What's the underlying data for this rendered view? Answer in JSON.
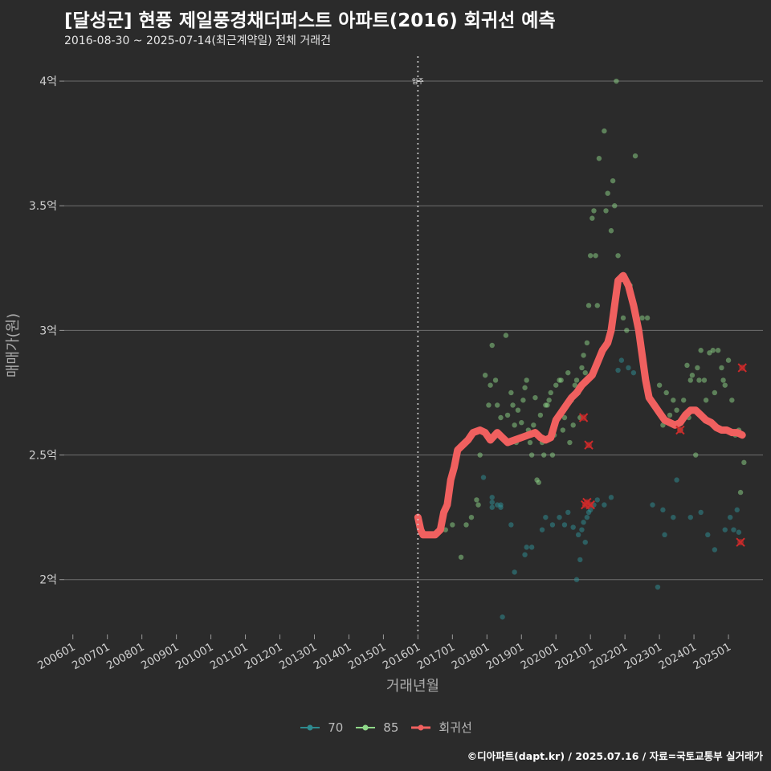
{
  "header": {
    "title": "[달성군] 현풍 제일풍경채더퍼스트 아파트(2016) 회귀선 예측",
    "subtitle": "2016-08-30 ~ 2025-07-14(최근계약일) 전체 거래건"
  },
  "footer": {
    "credit": "©디아파트(dapt.kr) / 2025.07.16 / 자료=국토교통부 실거래가"
  },
  "colors": {
    "background": "#2b2b2b",
    "grid": "#6e6e6e",
    "series70": "#2f8a8f",
    "series85": "#8fd889",
    "regression": "#f0605f",
    "outlier": "#cc2a2a"
  },
  "chart_data": {
    "type": "scatter",
    "title": "[달성군] 현풍 제일풍경채더퍼스트 아파트(2016) 회귀선 예측",
    "xlabel": "거래년월",
    "ylabel": "매매가(원)",
    "xlim": [
      2005.75,
      2026.0
    ],
    "ylim": [
      1.78,
      4.1
    ],
    "x_ticks": [
      {
        "label": "200601",
        "value": 2006.0
      },
      {
        "label": "200701",
        "value": 2007.0
      },
      {
        "label": "200801",
        "value": 2008.0
      },
      {
        "label": "200901",
        "value": 2009.0
      },
      {
        "label": "201001",
        "value": 2010.0
      },
      {
        "label": "201101",
        "value": 2011.0
      },
      {
        "label": "201201",
        "value": 2012.0
      },
      {
        "label": "201301",
        "value": 2013.0
      },
      {
        "label": "201401",
        "value": 2014.0
      },
      {
        "label": "201501",
        "value": 2015.0
      },
      {
        "label": "201601",
        "value": 2016.0
      },
      {
        "label": "201701",
        "value": 2017.0
      },
      {
        "label": "201801",
        "value": 2018.0
      },
      {
        "label": "201901",
        "value": 2019.0
      },
      {
        "label": "202001",
        "value": 2020.0
      },
      {
        "label": "202101",
        "value": 2021.0
      },
      {
        "label": "202201",
        "value": 2022.0
      },
      {
        "label": "202301",
        "value": 2023.0
      },
      {
        "label": "202401",
        "value": 2024.0
      },
      {
        "label": "202501",
        "value": 2025.0
      }
    ],
    "y_ticks": [
      {
        "label": "2억",
        "value": 2.0
      },
      {
        "label": "2.5억",
        "value": 2.5
      },
      {
        "label": "3억",
        "value": 3.0
      },
      {
        "label": "3.5억",
        "value": 3.5
      },
      {
        "label": "4억",
        "value": 4.0
      }
    ],
    "annotations": [
      {
        "label": "입주",
        "x": 2016.0,
        "y": 4.0
      }
    ],
    "legend": [
      "70",
      "85",
      "회귀선"
    ],
    "series": [
      {
        "name": "70",
        "points": [
          [
            2017.9,
            2.41
          ],
          [
            2018.15,
            2.33
          ],
          [
            2018.15,
            2.31
          ],
          [
            2018.15,
            2.29
          ],
          [
            2018.3,
            2.3
          ],
          [
            2018.4,
            2.29
          ],
          [
            2018.4,
            2.3
          ],
          [
            2018.45,
            1.85
          ],
          [
            2018.7,
            2.22
          ],
          [
            2018.8,
            2.03
          ],
          [
            2019.1,
            2.1
          ],
          [
            2019.15,
            2.13
          ],
          [
            2019.3,
            2.13
          ],
          [
            2019.6,
            2.2
          ],
          [
            2019.7,
            2.25
          ],
          [
            2019.9,
            2.22
          ],
          [
            2020.1,
            2.25
          ],
          [
            2020.25,
            2.22
          ],
          [
            2020.35,
            2.27
          ],
          [
            2020.5,
            2.21
          ],
          [
            2020.6,
            2.0
          ],
          [
            2020.65,
            2.18
          ],
          [
            2020.7,
            2.08
          ],
          [
            2020.75,
            2.2
          ],
          [
            2020.8,
            2.23
          ],
          [
            2020.85,
            2.15
          ],
          [
            2020.9,
            2.25
          ],
          [
            2020.95,
            2.27
          ],
          [
            2021.0,
            2.28
          ],
          [
            2021.1,
            2.3
          ],
          [
            2021.2,
            2.32
          ],
          [
            2021.4,
            2.3
          ],
          [
            2021.6,
            2.33
          ],
          [
            2021.8,
            2.84
          ],
          [
            2021.9,
            2.88
          ],
          [
            2022.1,
            2.85
          ],
          [
            2022.25,
            2.83
          ],
          [
            2022.6,
            2.8
          ],
          [
            2022.8,
            2.3
          ],
          [
            2022.95,
            1.97
          ],
          [
            2023.1,
            2.28
          ],
          [
            2023.15,
            2.18
          ],
          [
            2023.4,
            2.25
          ],
          [
            2023.5,
            2.4
          ],
          [
            2023.9,
            2.25
          ],
          [
            2024.2,
            2.27
          ],
          [
            2024.4,
            2.18
          ],
          [
            2024.6,
            2.12
          ],
          [
            2024.9,
            2.2
          ],
          [
            2025.05,
            2.25
          ],
          [
            2025.15,
            2.2
          ],
          [
            2025.25,
            2.28
          ],
          [
            2025.3,
            2.19
          ]
        ]
      },
      {
        "name": "85",
        "points": [
          [
            2016.8,
            2.2
          ],
          [
            2017.0,
            2.22
          ],
          [
            2017.25,
            2.09
          ],
          [
            2017.4,
            2.22
          ],
          [
            2017.55,
            2.25
          ],
          [
            2017.7,
            2.32
          ],
          [
            2017.75,
            2.3
          ],
          [
            2017.8,
            2.5
          ],
          [
            2017.95,
            2.82
          ],
          [
            2018.05,
            2.7
          ],
          [
            2018.1,
            2.78
          ],
          [
            2018.15,
            2.94
          ],
          [
            2018.25,
            2.8
          ],
          [
            2018.3,
            2.7
          ],
          [
            2018.4,
            2.65
          ],
          [
            2018.55,
            2.98
          ],
          [
            2018.6,
            2.66
          ],
          [
            2018.7,
            2.75
          ],
          [
            2018.75,
            2.7
          ],
          [
            2018.8,
            2.62
          ],
          [
            2018.85,
            2.55
          ],
          [
            2018.9,
            2.68
          ],
          [
            2019.0,
            2.63
          ],
          [
            2019.05,
            2.72
          ],
          [
            2019.1,
            2.77
          ],
          [
            2019.15,
            2.8
          ],
          [
            2019.2,
            2.6
          ],
          [
            2019.25,
            2.55
          ],
          [
            2019.3,
            2.5
          ],
          [
            2019.35,
            2.62
          ],
          [
            2019.4,
            2.73
          ],
          [
            2019.45,
            2.4
          ],
          [
            2019.5,
            2.39
          ],
          [
            2019.55,
            2.66
          ],
          [
            2019.6,
            2.55
          ],
          [
            2019.65,
            2.5
          ],
          [
            2019.7,
            2.7
          ],
          [
            2019.75,
            2.7
          ],
          [
            2019.8,
            2.72
          ],
          [
            2019.85,
            2.75
          ],
          [
            2019.9,
            2.5
          ],
          [
            2019.95,
            2.58
          ],
          [
            2020.0,
            2.78
          ],
          [
            2020.05,
            2.65
          ],
          [
            2020.1,
            2.8
          ],
          [
            2020.15,
            2.8
          ],
          [
            2020.2,
            2.6
          ],
          [
            2020.25,
            2.65
          ],
          [
            2020.35,
            2.83
          ],
          [
            2020.4,
            2.55
          ],
          [
            2020.45,
            2.72
          ],
          [
            2020.5,
            2.62
          ],
          [
            2020.55,
            2.78
          ],
          [
            2020.6,
            2.8
          ],
          [
            2020.65,
            2.75
          ],
          [
            2020.7,
            2.65
          ],
          [
            2020.75,
            2.85
          ],
          [
            2020.8,
            2.9
          ],
          [
            2020.85,
            2.83
          ],
          [
            2020.9,
            2.95
          ],
          [
            2020.95,
            3.1
          ],
          [
            2021.0,
            3.3
          ],
          [
            2021.05,
            3.45
          ],
          [
            2021.1,
            3.48
          ],
          [
            2021.15,
            3.3
          ],
          [
            2021.2,
            3.1
          ],
          [
            2021.25,
            3.69
          ],
          [
            2021.4,
            3.8
          ],
          [
            2021.45,
            3.48
          ],
          [
            2021.5,
            3.55
          ],
          [
            2021.6,
            3.4
          ],
          [
            2021.65,
            3.6
          ],
          [
            2021.7,
            3.5
          ],
          [
            2021.75,
            4.0
          ],
          [
            2021.8,
            3.3
          ],
          [
            2021.9,
            3.22
          ],
          [
            2021.95,
            3.05
          ],
          [
            2022.05,
            3.0
          ],
          [
            2022.15,
            3.18
          ],
          [
            2022.3,
            3.7
          ],
          [
            2022.5,
            3.05
          ],
          [
            2022.65,
            3.05
          ],
          [
            2023.0,
            2.78
          ],
          [
            2023.1,
            2.62
          ],
          [
            2023.2,
            2.75
          ],
          [
            2023.3,
            2.66
          ],
          [
            2023.4,
            2.72
          ],
          [
            2023.5,
            2.68
          ],
          [
            2023.6,
            2.6
          ],
          [
            2023.7,
            2.72
          ],
          [
            2023.8,
            2.86
          ],
          [
            2023.85,
            2.65
          ],
          [
            2023.9,
            2.8
          ],
          [
            2023.95,
            2.82
          ],
          [
            2024.05,
            2.5
          ],
          [
            2024.1,
            2.85
          ],
          [
            2024.15,
            2.8
          ],
          [
            2024.2,
            2.92
          ],
          [
            2024.3,
            2.8
          ],
          [
            2024.35,
            2.72
          ],
          [
            2024.45,
            2.91
          ],
          [
            2024.55,
            2.92
          ],
          [
            2024.6,
            2.75
          ],
          [
            2024.7,
            2.92
          ],
          [
            2024.8,
            2.85
          ],
          [
            2024.85,
            2.8
          ],
          [
            2024.9,
            2.78
          ],
          [
            2025.0,
            2.88
          ],
          [
            2025.1,
            2.72
          ],
          [
            2025.2,
            2.58
          ],
          [
            2025.3,
            2.6
          ],
          [
            2025.35,
            2.35
          ],
          [
            2025.45,
            2.47
          ]
        ]
      },
      {
        "name": "회귀선",
        "points": [
          [
            2016.0,
            2.25
          ],
          [
            2016.08,
            2.2
          ],
          [
            2016.15,
            2.18
          ],
          [
            2016.3,
            2.18
          ],
          [
            2016.5,
            2.18
          ],
          [
            2016.65,
            2.2
          ],
          [
            2016.75,
            2.27
          ],
          [
            2016.85,
            2.3
          ],
          [
            2016.95,
            2.4
          ],
          [
            2017.05,
            2.45
          ],
          [
            2017.15,
            2.52
          ],
          [
            2017.3,
            2.54
          ],
          [
            2017.45,
            2.56
          ],
          [
            2017.6,
            2.59
          ],
          [
            2017.8,
            2.6
          ],
          [
            2017.95,
            2.59
          ],
          [
            2018.1,
            2.56
          ],
          [
            2018.3,
            2.59
          ],
          [
            2018.45,
            2.57
          ],
          [
            2018.6,
            2.55
          ],
          [
            2018.8,
            2.56
          ],
          [
            2019.0,
            2.57
          ],
          [
            2019.2,
            2.58
          ],
          [
            2019.4,
            2.59
          ],
          [
            2019.55,
            2.57
          ],
          [
            2019.7,
            2.56
          ],
          [
            2019.85,
            2.57
          ],
          [
            2020.0,
            2.64
          ],
          [
            2020.15,
            2.67
          ],
          [
            2020.3,
            2.7
          ],
          [
            2020.45,
            2.73
          ],
          [
            2020.6,
            2.75
          ],
          [
            2020.75,
            2.78
          ],
          [
            2020.9,
            2.8
          ],
          [
            2021.05,
            2.82
          ],
          [
            2021.2,
            2.87
          ],
          [
            2021.35,
            2.92
          ],
          [
            2021.5,
            2.95
          ],
          [
            2021.6,
            3.0
          ],
          [
            2021.7,
            3.1
          ],
          [
            2021.8,
            3.2
          ],
          [
            2021.95,
            3.22
          ],
          [
            2022.1,
            3.18
          ],
          [
            2022.25,
            3.1
          ],
          [
            2022.4,
            3.0
          ],
          [
            2022.5,
            2.9
          ],
          [
            2022.6,
            2.8
          ],
          [
            2022.7,
            2.73
          ],
          [
            2022.85,
            2.7
          ],
          [
            2023.0,
            2.67
          ],
          [
            2023.15,
            2.64
          ],
          [
            2023.3,
            2.63
          ],
          [
            2023.45,
            2.62
          ],
          [
            2023.6,
            2.63
          ],
          [
            2023.75,
            2.66
          ],
          [
            2023.9,
            2.68
          ],
          [
            2024.05,
            2.68
          ],
          [
            2024.2,
            2.66
          ],
          [
            2024.35,
            2.64
          ],
          [
            2024.5,
            2.63
          ],
          [
            2024.65,
            2.61
          ],
          [
            2024.8,
            2.6
          ],
          [
            2024.95,
            2.6
          ],
          [
            2025.1,
            2.59
          ],
          [
            2025.25,
            2.59
          ],
          [
            2025.4,
            2.58
          ]
        ]
      }
    ],
    "outliers": [
      [
        2020.8,
        2.65
      ],
      [
        2020.95,
        2.54
      ],
      [
        2020.85,
        2.3
      ],
      [
        2020.9,
        2.31
      ],
      [
        2021.0,
        2.3
      ],
      [
        2023.6,
        2.6
      ],
      [
        2025.4,
        2.85
      ],
      [
        2025.35,
        2.15
      ]
    ]
  }
}
